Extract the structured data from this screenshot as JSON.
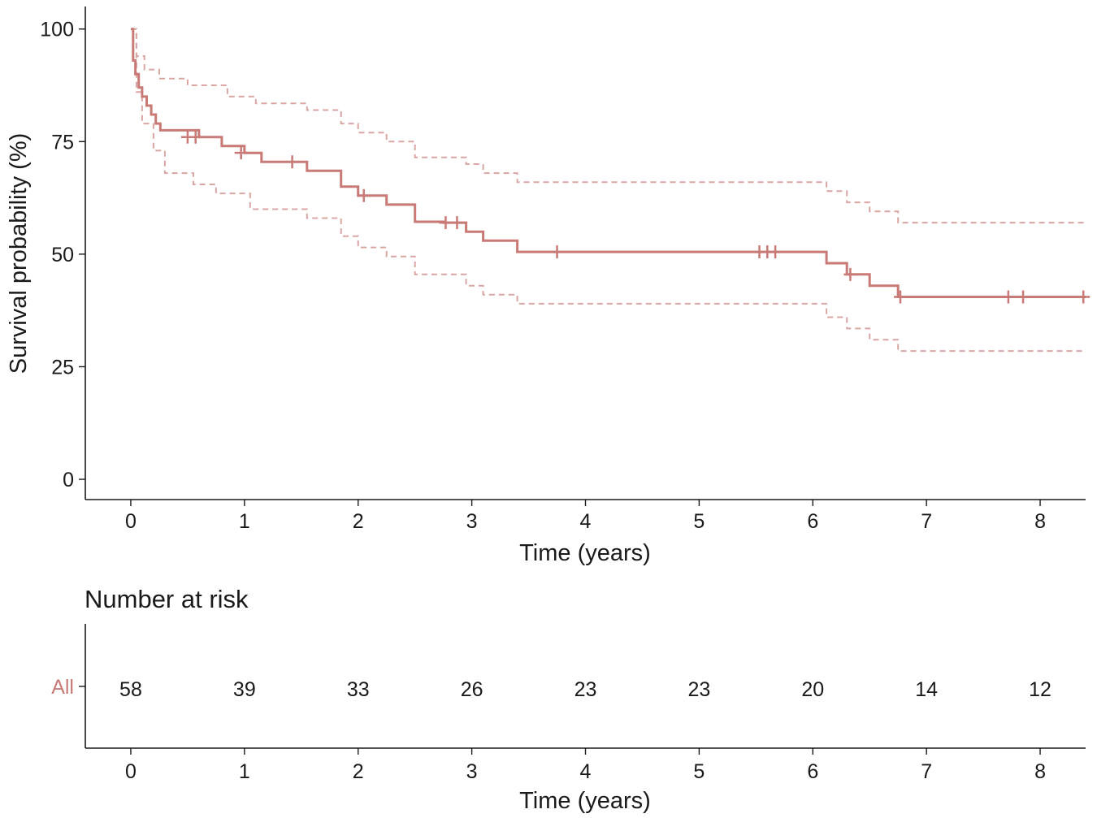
{
  "chart_data": [
    {
      "type": "line",
      "title": "",
      "xlabel": "Time (years)",
      "ylabel": "Survival probability (%)",
      "xlim": [
        -0.4,
        8.4
      ],
      "ylim": [
        -4.5,
        105
      ],
      "x_ticks": [
        0,
        1,
        2,
        3,
        4,
        5,
        6,
        7,
        8
      ],
      "y_ticks": [
        0,
        25,
        50,
        75,
        100
      ],
      "grid": false,
      "legend": "none",
      "colors": {
        "survival": "#c97a76",
        "ci": "#d9a6a3",
        "axis": "#1a1a1a"
      },
      "series": [
        {
          "style": "step",
          "x": [
            0,
            0.02,
            0.04,
            0.07,
            0.1,
            0.14,
            0.18,
            0.22,
            0.26,
            0.6,
            0.8,
            1.0,
            1.15,
            1.55,
            1.85,
            2.0,
            2.25,
            2.5,
            2.75,
            2.95,
            3.1,
            3.4,
            6.12,
            6.3,
            6.5,
            6.75,
            8.4
          ],
          "y": [
            100,
            93,
            90,
            87,
            85,
            83,
            81,
            79,
            77.5,
            76,
            74,
            72.5,
            70.5,
            68.5,
            65,
            63,
            61,
            57.2,
            57,
            55,
            53,
            50.5,
            48,
            45.5,
            43,
            40.5,
            40.5
          ]
        },
        {
          "name": "upper 95% CI",
          "style": "step-dashed",
          "x": [
            0,
            0.05,
            0.12,
            0.25,
            0.5,
            0.85,
            1.1,
            1.55,
            1.85,
            2.0,
            2.25,
            2.5,
            2.95,
            3.1,
            3.4,
            6.12,
            6.3,
            6.5,
            6.75,
            8.4
          ],
          "y": [
            100,
            94,
            91,
            89,
            87.5,
            85,
            83.5,
            82,
            79,
            77,
            75,
            71.5,
            70,
            68,
            66,
            64,
            61.5,
            59.5,
            57,
            57
          ]
        },
        {
          "name": "lower 95% CI",
          "style": "step-dashed",
          "x": [
            0,
            0.05,
            0.1,
            0.2,
            0.3,
            0.55,
            0.75,
            1.05,
            1.55,
            1.85,
            2.0,
            2.25,
            2.5,
            2.95,
            3.1,
            3.4,
            6.12,
            6.3,
            6.5,
            6.75,
            8.4
          ],
          "y": [
            100,
            86,
            79,
            73,
            68,
            65.5,
            63.5,
            60,
            58,
            54,
            51.5,
            49.5,
            45.5,
            43,
            41,
            39,
            36,
            33.5,
            31,
            28.5,
            28.5
          ]
        }
      ],
      "censor_marks": {
        "x": [
          0.5,
          0.57,
          0.97,
          1.42,
          2.05,
          2.77,
          2.87,
          3.75,
          5.53,
          5.6,
          5.67,
          6.33,
          6.77,
          7.72,
          7.85,
          8.38
        ],
        "y": [
          76,
          76,
          72.5,
          70.5,
          63,
          57,
          57,
          50.5,
          50.5,
          50.5,
          50.5,
          45.5,
          40.5,
          40.5,
          40.5,
          40.5
        ]
      }
    },
    {
      "type": "table",
      "title": "Number at risk",
      "xlabel": "Time (years)",
      "x_ticks": [
        0,
        1,
        2,
        3,
        4,
        5,
        6,
        7,
        8
      ],
      "rows": [
        {
          "label": "All",
          "color": "#c97a76",
          "values": [
            58,
            39,
            33,
            26,
            23,
            23,
            20,
            14,
            12
          ]
        }
      ]
    }
  ]
}
